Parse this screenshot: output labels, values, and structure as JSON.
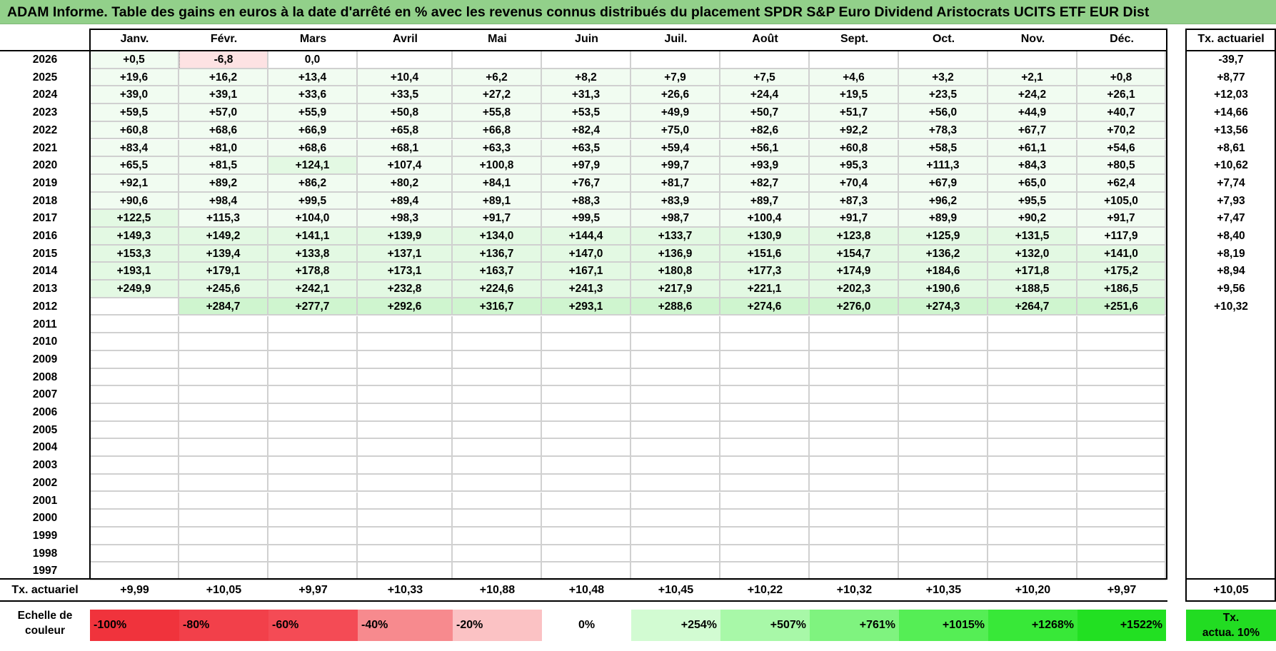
{
  "title": "ADAM Informe. Table des gains en euros à la date d'arrêté en % avec les revenus connus distribués du placement SPDR S&P Euro Dividend Aristocrats UCITS ETF EUR Dist",
  "months": [
    "Janv.",
    "Févr.",
    "Mars",
    "Avril",
    "Mai",
    "Juin",
    "Juil.",
    "Août",
    "Sept.",
    "Oct.",
    "Nov.",
    "Déc."
  ],
  "tx_header": "Tx. actuariel",
  "rows": [
    {
      "year": "2026",
      "values": [
        "+0,5",
        "-6,8",
        "0,0",
        "",
        "",
        "",
        "",
        "",
        "",
        "",
        "",
        ""
      ],
      "tx": "-39,7"
    },
    {
      "year": "2025",
      "values": [
        "+19,6",
        "+16,2",
        "+13,4",
        "+10,4",
        "+6,2",
        "+8,2",
        "+7,9",
        "+7,5",
        "+4,6",
        "+3,2",
        "+2,1",
        "+0,8"
      ],
      "tx": "+8,77"
    },
    {
      "year": "2024",
      "values": [
        "+39,0",
        "+39,1",
        "+33,6",
        "+33,5",
        "+27,2",
        "+31,3",
        "+26,6",
        "+24,4",
        "+19,5",
        "+23,5",
        "+24,2",
        "+26,1"
      ],
      "tx": "+12,03"
    },
    {
      "year": "2023",
      "values": [
        "+59,5",
        "+57,0",
        "+55,9",
        "+50,8",
        "+55,8",
        "+53,5",
        "+49,9",
        "+50,7",
        "+51,7",
        "+56,0",
        "+44,9",
        "+40,7"
      ],
      "tx": "+14,66"
    },
    {
      "year": "2022",
      "values": [
        "+60,8",
        "+68,6",
        "+66,9",
        "+65,8",
        "+66,8",
        "+82,4",
        "+75,0",
        "+82,6",
        "+92,2",
        "+78,3",
        "+67,7",
        "+70,2"
      ],
      "tx": "+13,56"
    },
    {
      "year": "2021",
      "values": [
        "+83,4",
        "+81,0",
        "+68,6",
        "+68,1",
        "+63,3",
        "+63,5",
        "+59,4",
        "+56,1",
        "+60,8",
        "+58,5",
        "+61,1",
        "+54,6"
      ],
      "tx": "+8,61"
    },
    {
      "year": "2020",
      "values": [
        "+65,5",
        "+81,5",
        "+124,1",
        "+107,4",
        "+100,8",
        "+97,9",
        "+99,7",
        "+93,9",
        "+95,3",
        "+111,3",
        "+84,3",
        "+80,5"
      ],
      "tx": "+10,62"
    },
    {
      "year": "2019",
      "values": [
        "+92,1",
        "+89,2",
        "+86,2",
        "+80,2",
        "+84,1",
        "+76,7",
        "+81,7",
        "+82,7",
        "+70,4",
        "+67,9",
        "+65,0",
        "+62,4"
      ],
      "tx": "+7,74"
    },
    {
      "year": "2018",
      "values": [
        "+90,6",
        "+98,4",
        "+99,5",
        "+89,4",
        "+89,1",
        "+88,3",
        "+83,9",
        "+89,7",
        "+87,3",
        "+96,2",
        "+95,5",
        "+105,0"
      ],
      "tx": "+7,93"
    },
    {
      "year": "2017",
      "values": [
        "+122,5",
        "+115,3",
        "+104,0",
        "+98,3",
        "+91,7",
        "+99,5",
        "+98,7",
        "+100,4",
        "+91,7",
        "+89,9",
        "+90,2",
        "+91,7"
      ],
      "tx": "+7,47"
    },
    {
      "year": "2016",
      "values": [
        "+149,3",
        "+149,2",
        "+141,1",
        "+139,9",
        "+134,0",
        "+144,4",
        "+133,7",
        "+130,9",
        "+123,8",
        "+125,9",
        "+131,5",
        "+117,9"
      ],
      "tx": "+8,40"
    },
    {
      "year": "2015",
      "values": [
        "+153,3",
        "+139,4",
        "+133,8",
        "+137,1",
        "+136,7",
        "+147,0",
        "+136,9",
        "+151,6",
        "+154,7",
        "+136,2",
        "+132,0",
        "+141,0"
      ],
      "tx": "+8,19"
    },
    {
      "year": "2014",
      "values": [
        "+193,1",
        "+179,1",
        "+178,8",
        "+173,1",
        "+163,7",
        "+167,1",
        "+180,8",
        "+177,3",
        "+174,9",
        "+184,6",
        "+171,8",
        "+175,2"
      ],
      "tx": "+8,94"
    },
    {
      "year": "2013",
      "values": [
        "+249,9",
        "+245,6",
        "+242,1",
        "+232,8",
        "+224,6",
        "+241,3",
        "+217,9",
        "+221,1",
        "+202,3",
        "+190,6",
        "+188,5",
        "+186,5"
      ],
      "tx": "+9,56"
    },
    {
      "year": "2012",
      "values": [
        "",
        "+284,7",
        "+277,7",
        "+292,6",
        "+316,7",
        "+293,1",
        "+288,6",
        "+274,6",
        "+276,0",
        "+274,3",
        "+264,7",
        "+251,6"
      ],
      "tx": "+10,32"
    },
    {
      "year": "2011",
      "values": [
        "",
        "",
        "",
        "",
        "",
        "",
        "",
        "",
        "",
        "",
        "",
        ""
      ],
      "tx": ""
    },
    {
      "year": "2010",
      "values": [
        "",
        "",
        "",
        "",
        "",
        "",
        "",
        "",
        "",
        "",
        "",
        ""
      ],
      "tx": ""
    },
    {
      "year": "2009",
      "values": [
        "",
        "",
        "",
        "",
        "",
        "",
        "",
        "",
        "",
        "",
        "",
        ""
      ],
      "tx": ""
    },
    {
      "year": "2008",
      "values": [
        "",
        "",
        "",
        "",
        "",
        "",
        "",
        "",
        "",
        "",
        "",
        ""
      ],
      "tx": ""
    },
    {
      "year": "2007",
      "values": [
        "",
        "",
        "",
        "",
        "",
        "",
        "",
        "",
        "",
        "",
        "",
        ""
      ],
      "tx": ""
    },
    {
      "year": "2006",
      "values": [
        "",
        "",
        "",
        "",
        "",
        "",
        "",
        "",
        "",
        "",
        "",
        ""
      ],
      "tx": ""
    },
    {
      "year": "2005",
      "values": [
        "",
        "",
        "",
        "",
        "",
        "",
        "",
        "",
        "",
        "",
        "",
        ""
      ],
      "tx": ""
    },
    {
      "year": "2004",
      "values": [
        "",
        "",
        "",
        "",
        "",
        "",
        "",
        "",
        "",
        "",
        "",
        ""
      ],
      "tx": ""
    },
    {
      "year": "2003",
      "values": [
        "",
        "",
        "",
        "",
        "",
        "",
        "",
        "",
        "",
        "",
        "",
        ""
      ],
      "tx": ""
    },
    {
      "year": "2002",
      "values": [
        "",
        "",
        "",
        "",
        "",
        "",
        "",
        "",
        "",
        "",
        "",
        ""
      ],
      "tx": ""
    },
    {
      "year": "2001",
      "values": [
        "",
        "",
        "",
        "",
        "",
        "",
        "",
        "",
        "",
        "",
        "",
        ""
      ],
      "tx": ""
    },
    {
      "year": "2000",
      "values": [
        "",
        "",
        "",
        "",
        "",
        "",
        "",
        "",
        "",
        "",
        "",
        ""
      ],
      "tx": ""
    },
    {
      "year": "1999",
      "values": [
        "",
        "",
        "",
        "",
        "",
        "",
        "",
        "",
        "",
        "",
        "",
        ""
      ],
      "tx": ""
    },
    {
      "year": "1998",
      "values": [
        "",
        "",
        "",
        "",
        "",
        "",
        "",
        "",
        "",
        "",
        "",
        ""
      ],
      "tx": ""
    },
    {
      "year": "1997",
      "values": [
        "",
        "",
        "",
        "",
        "",
        "",
        "",
        "",
        "",
        "",
        "",
        ""
      ],
      "tx": ""
    }
  ],
  "footer": {
    "label": "Tx. actuariel",
    "values": [
      "+9,99",
      "+10,05",
      "+9,97",
      "+10,33",
      "+10,88",
      "+10,48",
      "+10,45",
      "+10,22",
      "+10,32",
      "+10,35",
      "+10,20",
      "+9,97"
    ],
    "total": "+10,05"
  },
  "scale": {
    "label_line1": "Echelle de",
    "label_line2": "couleur",
    "items": [
      {
        "label": "-100%",
        "color": "#f0333c",
        "align": "left"
      },
      {
        "label": "-80%",
        "color": "#f2404a",
        "align": "left"
      },
      {
        "label": "-60%",
        "color": "#f44b55",
        "align": "left"
      },
      {
        "label": "-40%",
        "color": "#f78a8e",
        "align": "left"
      },
      {
        "label": "-20%",
        "color": "#fbc2c4",
        "align": "left"
      },
      {
        "label": "0%",
        "color": "#ffffff",
        "align": "center"
      },
      {
        "label": "+254%",
        "color": "#d2fbd2",
        "align": "right"
      },
      {
        "label": "+507%",
        "color": "#a8f8a8",
        "align": "right"
      },
      {
        "label": "+761%",
        "color": "#7ff37f",
        "align": "right"
      },
      {
        "label": "+1015%",
        "color": "#55ee55",
        "align": "right"
      },
      {
        "label": "+1268%",
        "color": "#38e838",
        "align": "right"
      },
      {
        "label": "+1522%",
        "color": "#22e022",
        "align": "right"
      }
    ],
    "tx_line1": "Tx.",
    "tx_line2": "actua. 10%"
  },
  "colors": {
    "title_bg": "#92d08a",
    "positive_light": "#f1fcf1",
    "positive_mid": "#e3f9e3",
    "positive_strong": "#cff5cf",
    "negative_light": "#fde2e3",
    "tx_box": "#22dc22"
  }
}
